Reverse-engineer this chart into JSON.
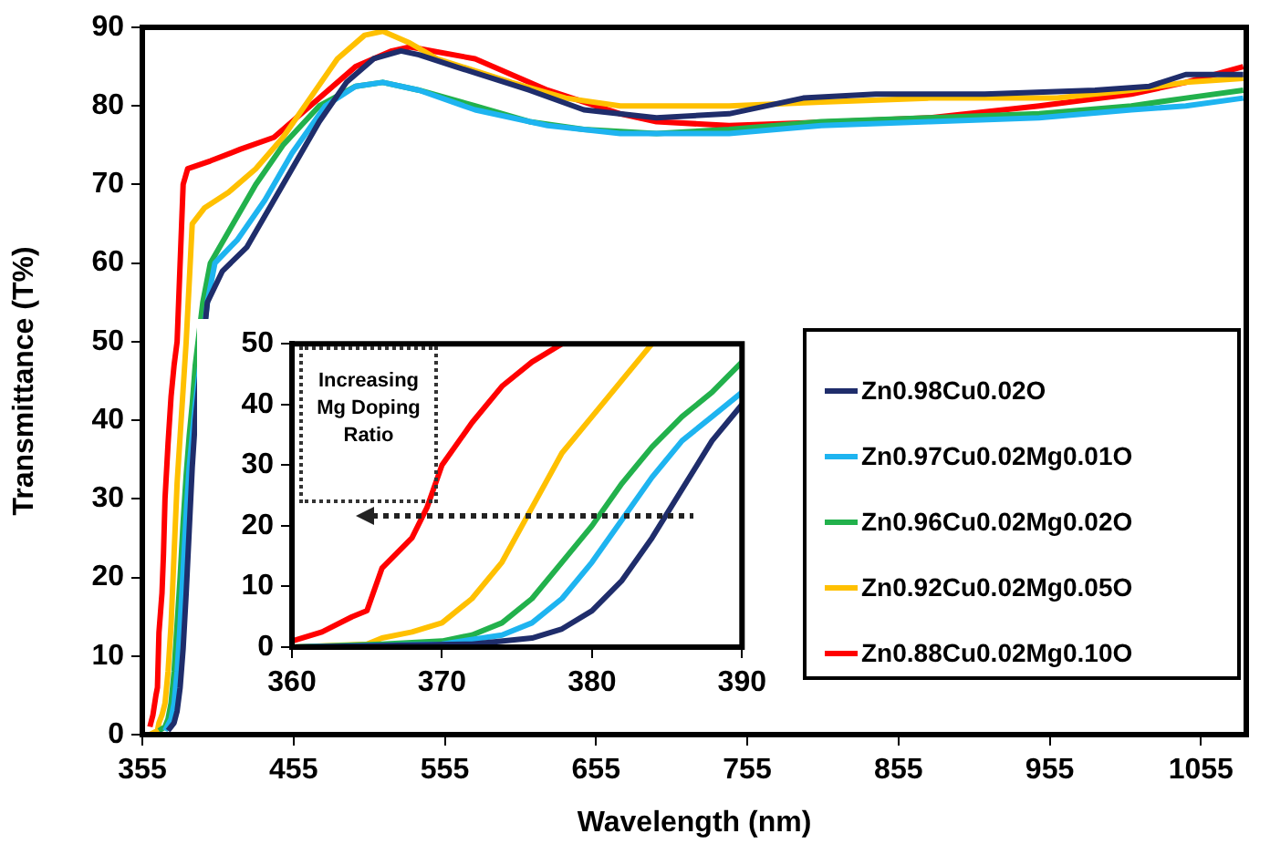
{
  "chart_data": [
    {
      "type": "line",
      "xlabel": "Wavelength (nm)",
      "ylabel": "Transmittance (T%)",
      "xlim": [
        355,
        1085
      ],
      "ylim": [
        0,
        90
      ],
      "xticks": [
        355,
        455,
        555,
        655,
        755,
        855,
        955,
        1055
      ],
      "yticks": [
        0,
        10,
        20,
        30,
        40,
        50,
        60,
        70,
        80,
        90
      ],
      "grid": false,
      "marker": "none",
      "legend": "bottom right",
      "series": [
        {
          "name": "Zn0.98Cu0.02O",
          "color": "#1f2d6b",
          "x": [
            372,
            376,
            378,
            380,
            382,
            384,
            386,
            388,
            390,
            398,
            408,
            424,
            436,
            454,
            472,
            490,
            508,
            526,
            538,
            562,
            611,
            647,
            695,
            743,
            792,
            840,
            912,
            985,
            1021,
            1045,
            1083
          ],
          "values": [
            0.5,
            1.5,
            3,
            6,
            11,
            18,
            26,
            34,
            40,
            55,
            59,
            62,
            66,
            72,
            78,
            83,
            86,
            87,
            86.5,
            85,
            82,
            79.5,
            78.5,
            79,
            81,
            81.5,
            81.5,
            82,
            82.5,
            84,
            84
          ]
        },
        {
          "name": "Zn0.97Cu0.02Mg0.01O",
          "color": "#1eb4f0",
          "x": [
            370,
            374,
            376,
            378,
            380,
            382,
            384,
            386,
            388,
            390,
            398,
            403,
            418,
            436,
            454,
            476,
            496,
            514,
            538,
            575,
            623,
            671,
            743,
            804,
            876,
            948,
            1009,
            1045,
            1083
          ],
          "values": [
            0.5,
            2,
            4,
            8,
            14,
            21,
            28,
            34,
            38,
            42,
            55,
            60,
            63,
            68,
            74,
            80,
            82.5,
            83,
            82,
            79.5,
            77.5,
            76.5,
            76.5,
            77.5,
            78,
            78.5,
            79.5,
            80,
            81
          ]
        },
        {
          "name": "Zn0.96Cu0.02Mg0.02O",
          "color": "#22b14c",
          "x": [
            366,
            370,
            372,
            374,
            376,
            378,
            380,
            382,
            384,
            386,
            388,
            390,
            395,
            400,
            415,
            430,
            448,
            472,
            496,
            514,
            538,
            575,
            611,
            647,
            695,
            743,
            804,
            876,
            948,
            1009,
            1045,
            1083
          ],
          "values": [
            0.5,
            1,
            2,
            4,
            8,
            14,
            20,
            27,
            33,
            38,
            42,
            47,
            55,
            60,
            65,
            70,
            75,
            80,
            82.5,
            83,
            82,
            80,
            78,
            77,
            76.5,
            77,
            78,
            78.5,
            79,
            80,
            81,
            82
          ]
        },
        {
          "name": "Zn0.92Cu0.02Mg0.05O",
          "color": "#ffc000",
          "x": [
            360,
            365,
            366,
            368,
            370,
            372,
            374,
            376,
            378,
            380,
            382,
            384,
            388,
            396,
            412,
            430,
            448,
            466,
            484,
            502,
            514,
            532,
            550,
            599,
            635,
            671,
            743,
            804,
            876,
            960,
            1009,
            1045,
            1083
          ],
          "values": [
            0,
            0.5,
            1.5,
            2.5,
            4,
            8,
            14,
            23,
            32,
            38,
            44,
            50,
            65,
            67,
            69,
            72,
            76,
            81,
            86,
            89,
            89.5,
            88,
            86,
            83,
            81,
            80,
            80,
            80.5,
            81,
            81,
            82,
            83,
            83.5
          ]
        },
        {
          "name": "Zn0.88Cu0.02Mg0.10O",
          "color": "#ff0000",
          "x": [
            360,
            362,
            364,
            365,
            366,
            368,
            369,
            370,
            372,
            374,
            376,
            378,
            382,
            385,
            400,
            420,
            442,
            466,
            496,
            520,
            532,
            575,
            623,
            671,
            695,
            743,
            815,
            876,
            948,
            1009,
            1045,
            1083
          ],
          "values": [
            1,
            2.5,
            5,
            6,
            13,
            18,
            23,
            30,
            37,
            43,
            47,
            50,
            70,
            72,
            73,
            74.5,
            76,
            80,
            85,
            87,
            87.5,
            86,
            82,
            79,
            78,
            77.5,
            78,
            78.5,
            80,
            81.5,
            83,
            85
          ]
        }
      ]
    },
    {
      "type": "line",
      "xlim": [
        360,
        390
      ],
      "ylim": [
        0,
        50
      ],
      "xticks": [
        360,
        370,
        380,
        390
      ],
      "yticks": [
        0,
        10,
        20,
        30,
        40,
        50
      ],
      "grid": false,
      "marker": "none",
      "legend": false,
      "annotations": [
        "Increasing Mg Doping Ratio"
      ],
      "series": [
        {
          "color": "#1f2d6b",
          "x": [
            360,
            372,
            376,
            378,
            380,
            382,
            384,
            386,
            388,
            390
          ],
          "values": [
            0,
            0.5,
            1.5,
            3,
            6,
            11,
            18,
            26,
            34,
            40
          ]
        },
        {
          "color": "#1eb4f0",
          "x": [
            360,
            370,
            374,
            376,
            378,
            380,
            382,
            384,
            386,
            388,
            390
          ],
          "values": [
            0,
            0.5,
            2,
            4,
            8,
            14,
            21,
            28,
            34,
            38,
            42
          ]
        },
        {
          "color": "#22b14c",
          "x": [
            360,
            366,
            370,
            372,
            374,
            376,
            378,
            380,
            382,
            384,
            386,
            388,
            390
          ],
          "values": [
            0,
            0.5,
            1,
            2,
            4,
            8,
            14,
            20,
            27,
            33,
            38,
            42,
            47
          ]
        },
        {
          "color": "#ffc000",
          "x": [
            360,
            365,
            366,
            368,
            370,
            372,
            374,
            376,
            378,
            380,
            382,
            384
          ],
          "values": [
            0,
            0.5,
            1.5,
            2.5,
            4,
            8,
            14,
            23,
            32,
            38,
            44,
            50
          ]
        },
        {
          "color": "#ff0000",
          "x": [
            360,
            362,
            364,
            365,
            366,
            368,
            369,
            370,
            372,
            374,
            376,
            378
          ],
          "values": [
            1,
            2.5,
            5,
            6,
            13,
            18,
            23,
            30,
            37,
            43,
            47,
            50
          ]
        }
      ]
    }
  ]
}
